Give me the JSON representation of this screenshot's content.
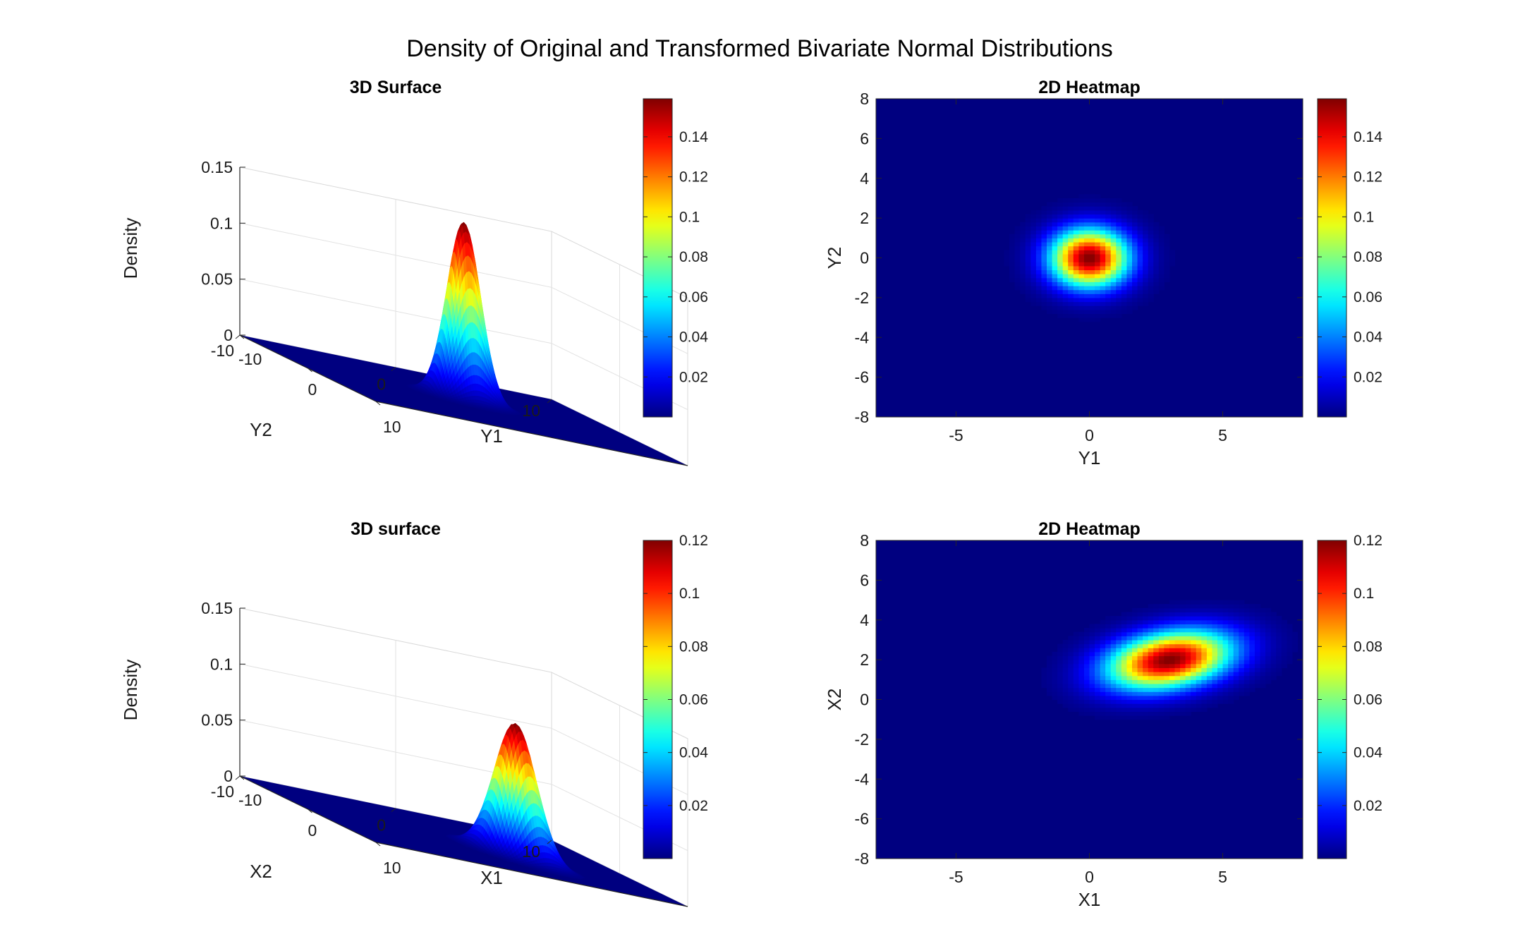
{
  "figure": {
    "title": "Density of Original and Transformed Bivariate Normal Distributions"
  },
  "chart_data": [
    {
      "type": "surface",
      "title": "3D Surface",
      "xlabel": "Y1",
      "ylabel": "Y2",
      "zlabel": "Density",
      "xlim": [
        -10,
        10
      ],
      "ylim": [
        -10,
        10
      ],
      "zlim": [
        0,
        0.15
      ],
      "xticks": [
        "-10",
        "0",
        "10"
      ],
      "yticks": [
        "-10",
        "0",
        "10"
      ],
      "zticks": [
        "0",
        "0.05",
        "0.1",
        "0.15"
      ],
      "grid": true,
      "colormap": "jet",
      "distribution": {
        "mean": [
          0,
          0
        ],
        "sd": [
          1,
          1
        ],
        "rho": 0,
        "peak": 0.159
      },
      "colorbar": {
        "min": 0,
        "max": 0.159,
        "ticks": [
          "0.02",
          "0.04",
          "0.06",
          "0.08",
          "0.1",
          "0.12",
          "0.14"
        ]
      }
    },
    {
      "type": "heatmap",
      "title": "2D Heatmap",
      "xlabel": "Y1",
      "ylabel": "Y2",
      "xlim": [
        -8,
        8
      ],
      "ylim": [
        -8,
        8
      ],
      "xticks": [
        "-5",
        "0",
        "5"
      ],
      "yticks": [
        "-8",
        "-6",
        "-4",
        "-2",
        "0",
        "2",
        "4",
        "6",
        "8"
      ],
      "colormap": "jet",
      "distribution": {
        "mean": [
          0,
          0
        ],
        "sd": [
          1,
          1
        ],
        "rho": 0,
        "peak": 0.159
      },
      "colorbar": {
        "min": 0,
        "max": 0.159,
        "ticks": [
          "0.02",
          "0.04",
          "0.06",
          "0.08",
          "0.1",
          "0.12",
          "0.14"
        ]
      }
    },
    {
      "type": "surface",
      "title": "3D surface",
      "xlabel": "X1",
      "ylabel": "X2",
      "zlabel": "Density",
      "xlim": [
        -10,
        10
      ],
      "ylim": [
        -10,
        10
      ],
      "zlim": [
        0,
        0.15
      ],
      "xticks": [
        "-10",
        "0",
        "10"
      ],
      "yticks": [
        "-10",
        "0",
        "10"
      ],
      "zticks": [
        "0",
        "0.05",
        "0.1",
        "0.15"
      ],
      "grid": true,
      "colormap": "jet",
      "distribution": {
        "mean": [
          3,
          2
        ],
        "sd": [
          1.58,
          1.0
        ],
        "rho": 0.3,
        "peak": 0.12
      },
      "colorbar": {
        "min": 0,
        "max": 0.12,
        "ticks": [
          "0.02",
          "0.04",
          "0.06",
          "0.08",
          "0.1",
          "0.12"
        ]
      }
    },
    {
      "type": "heatmap",
      "title": "2D Heatmap",
      "xlabel": "X1",
      "ylabel": "X2",
      "xlim": [
        -8,
        8
      ],
      "ylim": [
        -8,
        8
      ],
      "xticks": [
        "-5",
        "0",
        "5"
      ],
      "yticks": [
        "-8",
        "-6",
        "-4",
        "-2",
        "0",
        "2",
        "4",
        "6",
        "8"
      ],
      "colormap": "jet",
      "distribution": {
        "mean": [
          3,
          2
        ],
        "sd": [
          1.58,
          1.0
        ],
        "rho": 0.3,
        "peak": 0.12
      },
      "colorbar": {
        "min": 0,
        "max": 0.12,
        "ticks": [
          "0.02",
          "0.04",
          "0.06",
          "0.08",
          "0.1",
          "0.12"
        ]
      }
    }
  ]
}
